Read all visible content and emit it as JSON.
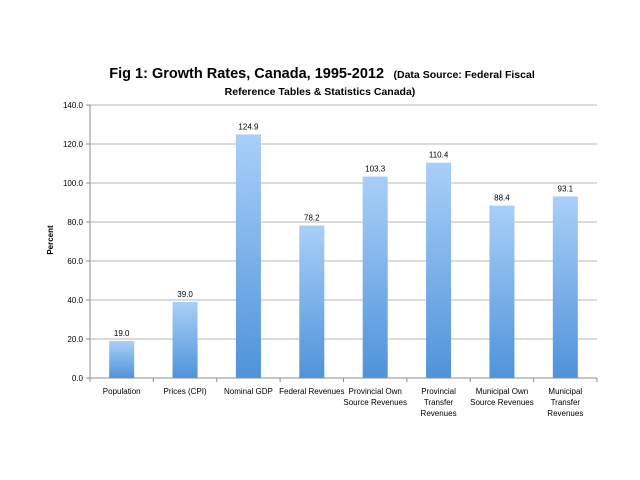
{
  "chart_data": {
    "type": "bar",
    "title_line1": "Fig 1: Growth Rates, Canada, 1995-2012",
    "title_line1_suffix": "(Data Source: Federal Fiscal",
    "title_line2": "Reference Tables & Statistics Canada)",
    "xlabel": "",
    "ylabel": "Percent",
    "ylim": [
      0,
      140
    ],
    "yticks": [
      0,
      20,
      40,
      60,
      80,
      100,
      120,
      140
    ],
    "ytick_labels": [
      "0.0",
      "20.0",
      "40.0",
      "60.0",
      "80.0",
      "100.0",
      "120.0",
      "140.0"
    ],
    "grid": true,
    "legend": "none",
    "categories": [
      [
        "Population"
      ],
      [
        "Prices (CPI)"
      ],
      [
        "Nominal GDP"
      ],
      [
        "Federal Revenues"
      ],
      [
        "Provincial Own",
        "Source Revenues"
      ],
      [
        "Provincial",
        "Transfer",
        "Revenues"
      ],
      [
        "Municipal Own",
        "Source Revenues"
      ],
      [
        "Municipal",
        "Transfer",
        "Revenues"
      ]
    ],
    "values": [
      19.0,
      39.0,
      124.9,
      78.2,
      103.3,
      110.4,
      88.4,
      93.1
    ],
    "value_labels": [
      "19.0",
      "39.0",
      "124.9",
      "78.2",
      "103.3",
      "110.4",
      "88.4",
      "93.1"
    ],
    "colors": {
      "bar_top": "#a9cff8",
      "bar_bottom": "#4f93da",
      "grid": "#b7b7b7",
      "axis": "#8c8c8c"
    }
  }
}
